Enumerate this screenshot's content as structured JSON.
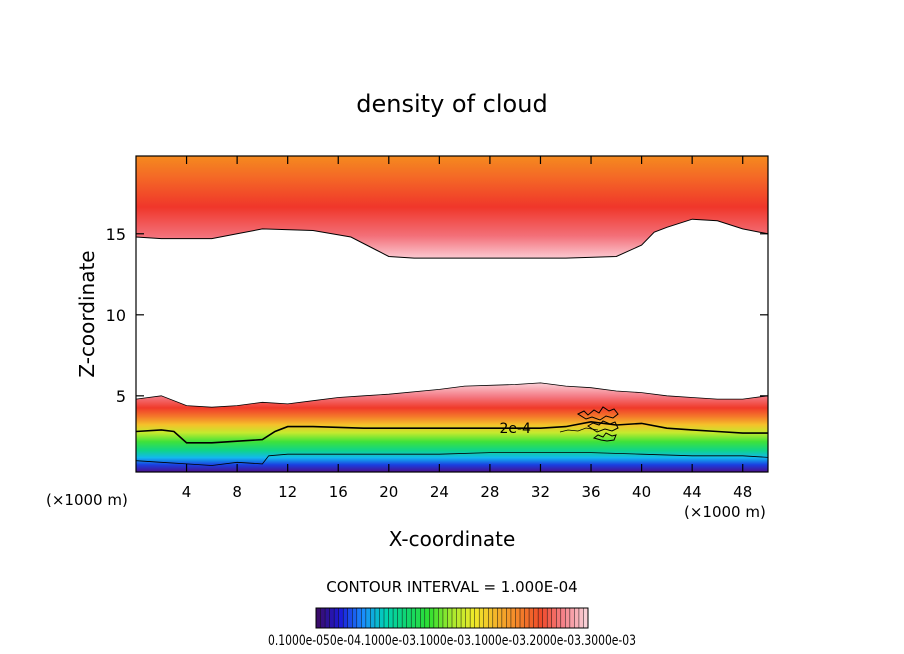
{
  "chart_data": {
    "type": "heatmap",
    "title": "density of cloud",
    "xlabel": "X-coordinate",
    "ylabel": "Z-coordinate",
    "x_unit": "(×1000 m)",
    "z_unit": "(×1000 m)",
    "xlim": [
      0,
      50
    ],
    "ylim": [
      0.3,
      19.8
    ],
    "x_ticks": [
      "4",
      "8",
      "12",
      "16",
      "20",
      "24",
      "28",
      "32",
      "36",
      "40",
      "44",
      "48"
    ],
    "x_tick_values": [
      4,
      8,
      12,
      16,
      20,
      24,
      28,
      32,
      36,
      40,
      44,
      48
    ],
    "y_ticks": [
      "5",
      "10",
      "15"
    ],
    "y_tick_values": [
      5,
      10,
      15
    ],
    "contour_label": "2e-4",
    "contour_label_position": [
      30,
      3.0
    ],
    "contour_interval_text": "CONTOUR INTERVAL = 1.000E-04",
    "colorbar_label": "0.1000e-050e-04.1000e-03.1000e-03.1000e-03.2000e-03.3000e-03",
    "colorscale": [
      "#3a0c6b",
      "#1b1bd8",
      "#1a8cff",
      "#00d2b4",
      "#11d66e",
      "#30e030",
      "#a7ea2f",
      "#f0ea2a",
      "#f4b32a",
      "#f4832a",
      "#f04a2a",
      "#f5828a",
      "#fad0d6"
    ],
    "upper_layer": {
      "top_z": 19.8,
      "bottom_boundary": {
        "x": [
          0,
          2,
          6,
          8,
          10,
          14,
          17,
          19,
          20,
          22,
          28,
          34,
          38,
          40,
          41,
          42,
          44,
          46,
          48,
          50
        ],
        "z": [
          14.8,
          14.7,
          14.7,
          15.0,
          15.3,
          15.2,
          14.8,
          14.0,
          13.6,
          13.5,
          13.5,
          13.5,
          13.6,
          14.3,
          15.1,
          15.4,
          15.9,
          15.8,
          15.3,
          15.0
        ]
      }
    },
    "lower_layer": {
      "top_boundary": {
        "x": [
          0,
          2,
          4,
          6,
          8,
          10,
          12,
          14,
          16,
          18,
          20,
          24,
          26,
          30,
          32,
          34,
          36,
          38,
          40,
          42,
          44,
          46,
          48,
          50
        ],
        "z": [
          4.8,
          5.0,
          4.4,
          4.3,
          4.4,
          4.6,
          4.5,
          4.7,
          4.9,
          5.0,
          5.1,
          5.4,
          5.6,
          5.7,
          5.8,
          5.6,
          5.5,
          5.3,
          5.2,
          5.0,
          4.9,
          4.8,
          4.8,
          5.0
        ]
      },
      "contour_2e-4": {
        "x": [
          0,
          2,
          3,
          4,
          6,
          8,
          10,
          11,
          12,
          14,
          18,
          22,
          28,
          32,
          34,
          36,
          38,
          40,
          42,
          44,
          46,
          48,
          50
        ],
        "z": [
          2.8,
          2.9,
          2.8,
          2.1,
          2.1,
          2.2,
          2.3,
          2.8,
          3.1,
          3.1,
          3.0,
          3.0,
          3.0,
          3.0,
          3.1,
          3.4,
          3.2,
          3.3,
          3.0,
          2.9,
          2.8,
          2.7,
          2.7
        ]
      },
      "cloud_base": {
        "x": [
          0,
          2,
          4,
          6,
          8,
          10,
          10.5,
          12,
          16,
          20,
          24,
          28,
          32,
          36,
          40,
          44,
          48,
          50
        ],
        "z": [
          1.0,
          0.9,
          0.8,
          0.7,
          0.9,
          0.8,
          1.3,
          1.4,
          1.4,
          1.4,
          1.4,
          1.5,
          1.5,
          1.5,
          1.4,
          1.3,
          1.3,
          1.2
        ]
      }
    }
  }
}
